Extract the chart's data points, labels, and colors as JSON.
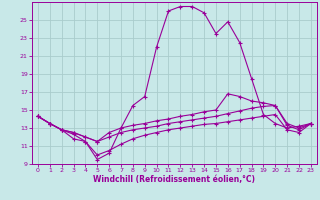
{
  "xlabel": "Windchill (Refroidissement éolien,°C)",
  "bg_color": "#c8e8e8",
  "line_color": "#990099",
  "grid_color": "#aacccc",
  "xlim": [
    -0.5,
    23.5
  ],
  "ylim": [
    9,
    27
  ],
  "yticks": [
    9,
    11,
    13,
    15,
    17,
    19,
    21,
    23,
    25
  ],
  "xticks": [
    0,
    1,
    2,
    3,
    4,
    5,
    6,
    7,
    8,
    9,
    10,
    11,
    12,
    13,
    14,
    15,
    16,
    17,
    18,
    19,
    20,
    21,
    22,
    23
  ],
  "series1_x": [
    0,
    1,
    2,
    3,
    4,
    5,
    6,
    7,
    8,
    9,
    10,
    11,
    12,
    13,
    14,
    15,
    16,
    17,
    18,
    19,
    20,
    21,
    22,
    23
  ],
  "series1_y": [
    14.3,
    13.5,
    12.8,
    11.8,
    11.5,
    9.5,
    10.2,
    13.0,
    15.5,
    16.5,
    22.0,
    26.0,
    26.5,
    26.5,
    25.8,
    23.5,
    24.8,
    22.5,
    18.5,
    14.5,
    13.5,
    13.0,
    13.2,
    13.5
  ],
  "series2_x": [
    0,
    1,
    2,
    3,
    4,
    5,
    6,
    7,
    8,
    9,
    10,
    11,
    12,
    13,
    14,
    15,
    16,
    17,
    18,
    19,
    20,
    21,
    22,
    23
  ],
  "series2_y": [
    14.3,
    13.5,
    12.8,
    12.5,
    12.0,
    11.5,
    12.5,
    13.0,
    13.3,
    13.5,
    13.8,
    14.0,
    14.3,
    14.5,
    14.8,
    15.0,
    16.8,
    16.5,
    16.0,
    15.8,
    15.5,
    13.5,
    13.0,
    13.5
  ],
  "series3_x": [
    0,
    1,
    2,
    3,
    4,
    5,
    6,
    7,
    8,
    9,
    10,
    11,
    12,
    13,
    14,
    15,
    16,
    17,
    18,
    19,
    20,
    21,
    22,
    23
  ],
  "series3_y": [
    14.3,
    13.5,
    12.8,
    12.5,
    12.0,
    11.5,
    12.0,
    12.5,
    12.8,
    13.0,
    13.2,
    13.5,
    13.7,
    13.9,
    14.1,
    14.3,
    14.6,
    14.9,
    15.2,
    15.4,
    15.5,
    13.3,
    12.8,
    13.5
  ],
  "series4_x": [
    0,
    1,
    2,
    3,
    4,
    5,
    6,
    7,
    8,
    9,
    10,
    11,
    12,
    13,
    14,
    15,
    16,
    17,
    18,
    19,
    20,
    21,
    22,
    23
  ],
  "series4_y": [
    14.3,
    13.5,
    12.8,
    12.3,
    11.5,
    10.0,
    10.5,
    11.2,
    11.8,
    12.2,
    12.5,
    12.8,
    13.0,
    13.2,
    13.4,
    13.5,
    13.7,
    13.9,
    14.1,
    14.3,
    14.5,
    12.8,
    12.5,
    13.5
  ]
}
